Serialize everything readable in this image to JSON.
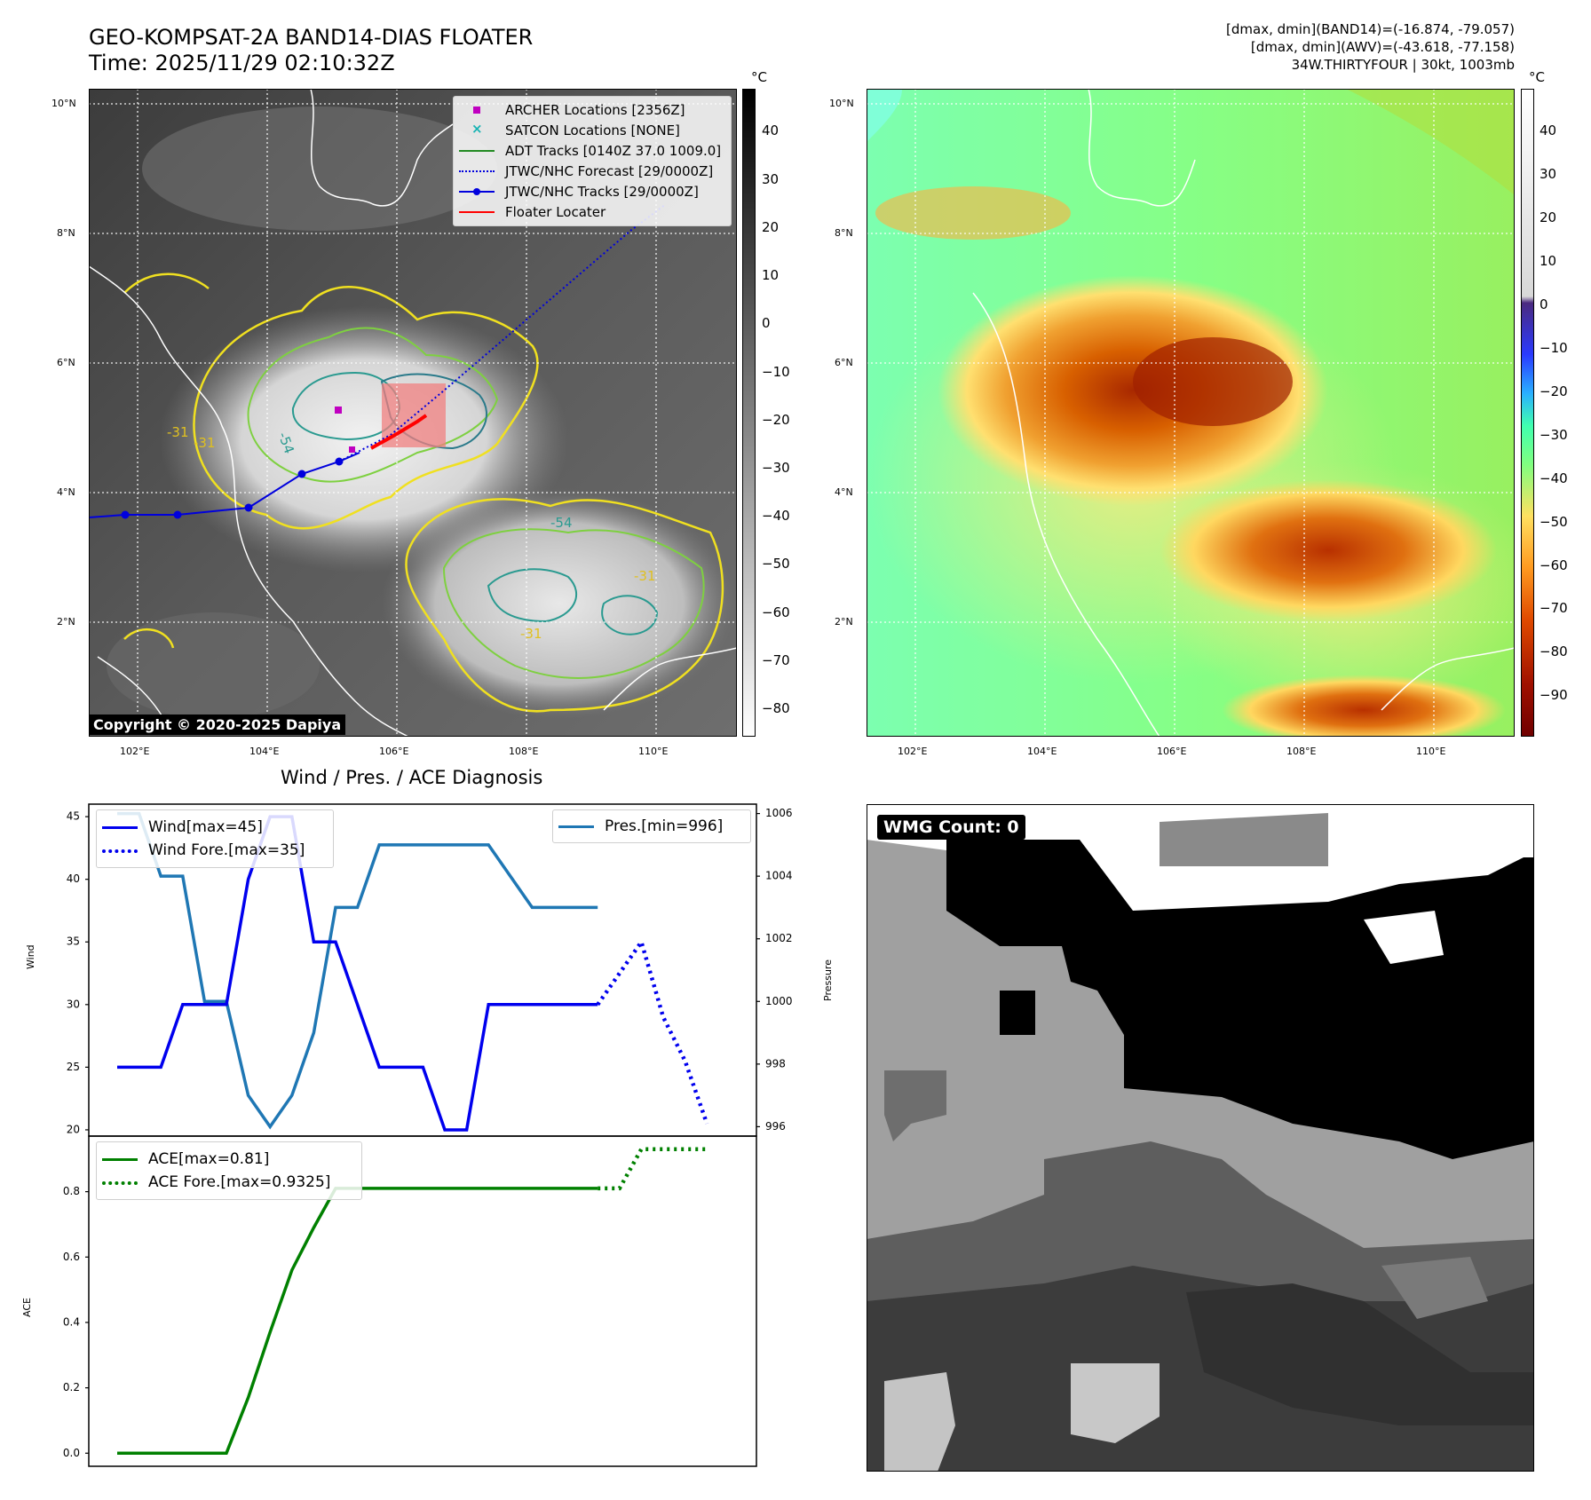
{
  "header": {
    "title_line1": "GEO-KOMPSAT-2A BAND14-DIAS FLOATER",
    "title_line2": "Time: 2025/11/29 02:10:32Z",
    "right_line1": "[dmax, dmin](BAND14)=(-16.874, -79.057)",
    "right_line2": "[dmax, dmin](AWV)=(-43.618, -77.158)",
    "right_line3": "34W.THIRTYFOUR | 30kt, 1003mb"
  },
  "map_axes": {
    "lon_ticks": [
      "102°E",
      "104°E",
      "106°E",
      "108°E",
      "110°E"
    ],
    "lat_ticks": [
      "10°N",
      "8°N",
      "6°N",
      "4°N",
      "2°N"
    ],
    "contour_labels": [
      "-31",
      "-31",
      "-54",
      "-31",
      "-31",
      "-54"
    ]
  },
  "ir_map": {
    "unit": "°C",
    "colorbar_ticks": [
      "40",
      "30",
      "20",
      "10",
      "0",
      "−10",
      "−20",
      "−30",
      "−40",
      "−50",
      "−60",
      "−70",
      "−80"
    ],
    "copyright": "Copyright © 2020-2025 Dapiya",
    "legend": [
      {
        "label": "ARCHER Locations [2356Z]",
        "color": "#c000c0",
        "style": "square"
      },
      {
        "label": "SATCON Locations [NONE]",
        "color": "#17b3b3",
        "style": "x"
      },
      {
        "label": "ADT Tracks [0140Z 37.0 1009.0]",
        "color": "#228b22",
        "style": "line"
      },
      {
        "label": "JTWC/NHC Forecast [29/0000Z]",
        "color": "#0000dd",
        "style": "dotted"
      },
      {
        "label": "JTWC/NHC Tracks [29/0000Z]",
        "color": "#0000dd",
        "style": "line-dot"
      },
      {
        "label": "Floater Locater",
        "color": "#ff0000",
        "style": "line"
      }
    ]
  },
  "wv_map": {
    "unit": "°C",
    "colorbar_ticks": [
      "40",
      "30",
      "20",
      "10",
      "0",
      "−10",
      "−20",
      "−30",
      "−40",
      "−50",
      "−60",
      "−70",
      "−80",
      "−90"
    ]
  },
  "wmg": {
    "label": "WMG Count: 0"
  },
  "diag": {
    "title": "Wind / Pres. / ACE Diagnosis",
    "wind_ylabel": "Wind",
    "pres_ylabel": "Pressure",
    "ace_ylabel": "ACE",
    "wind_ticks": [
      "45",
      "40",
      "35",
      "30",
      "25",
      "20"
    ],
    "pres_ticks": [
      "1006",
      "1004",
      "1002",
      "1000",
      "998",
      "996"
    ],
    "ace_ticks": [
      "0.8",
      "0.6",
      "0.4",
      "0.2",
      "0.0"
    ],
    "legend_wind": "Wind[max=45]",
    "legend_wind_fore": "Wind Fore.[max=35]",
    "legend_pres": "Pres.[min=996]",
    "legend_ace": "ACE[max=0.81]",
    "legend_ace_fore": "ACE Fore.[max=0.9325]"
  },
  "colors": {
    "wind": "#0000ee",
    "pressure": "#1f77b4",
    "ace": "#008000"
  },
  "chart_data": [
    {
      "type": "line",
      "name": "Wind / Pres.",
      "x": [
        0,
        1,
        2,
        3,
        4,
        5,
        6,
        7,
        8,
        9,
        10,
        11,
        12,
        13,
        14,
        15,
        16,
        17,
        18,
        19,
        20,
        21,
        22,
        23,
        24,
        25,
        26,
        27
      ],
      "series": [
        {
          "name": "Wind[max=45]",
          "axis": "left",
          "x": [
            0,
            1,
            2,
            3,
            4,
            5,
            6,
            7,
            8,
            9,
            10,
            11,
            12,
            13,
            14,
            15,
            16,
            17,
            18,
            19,
            20,
            21,
            22
          ],
          "values": [
            25,
            25,
            25,
            30,
            30,
            30,
            40,
            45,
            45,
            35,
            35,
            30,
            25,
            25,
            25,
            20,
            20,
            30,
            30,
            30,
            30,
            30,
            30
          ]
        },
        {
          "name": "Wind Fore.[max=35]",
          "axis": "left",
          "x": [
            22,
            23,
            24,
            25,
            26,
            27
          ],
          "values": [
            30,
            32.5,
            35,
            29,
            25.5,
            20.5
          ]
        },
        {
          "name": "Pres.[min=996]",
          "axis": "right",
          "x": [
            0,
            1,
            2,
            3,
            4,
            5,
            6,
            7,
            8,
            9,
            10,
            11,
            12,
            13,
            14,
            15,
            16,
            17,
            18,
            19,
            20,
            21,
            22
          ],
          "values": [
            1006,
            1006,
            1004,
            1004,
            1000,
            1000,
            997,
            996,
            997,
            999,
            1003,
            1003,
            1005,
            1005,
            1005,
            1005,
            1005,
            1005,
            1004,
            1003,
            1003,
            1003,
            1003
          ]
        }
      ],
      "ylabel": "Wind",
      "ylim": [
        19.5,
        46
      ],
      "y2label": "Pressure",
      "y2lim": [
        995.7,
        1006.3
      ]
    },
    {
      "type": "line",
      "name": "ACE",
      "series": [
        {
          "name": "ACE[max=0.81]",
          "x": [
            0,
            1,
            2,
            3,
            4,
            5,
            6,
            7,
            8,
            9,
            10,
            11,
            12,
            13,
            14,
            15,
            16,
            17,
            18,
            19,
            20,
            21,
            22
          ],
          "values": [
            0,
            0,
            0,
            0,
            0,
            0,
            0.17,
            0.37,
            0.56,
            0.69,
            0.81,
            0.81,
            0.81,
            0.81,
            0.81,
            0.81,
            0.81,
            0.81,
            0.81,
            0.81,
            0.81,
            0.81,
            0.81
          ]
        },
        {
          "name": "ACE Fore.[max=0.9325]",
          "x": [
            22,
            23,
            24,
            25,
            26,
            27
          ],
          "values": [
            0.81,
            0.81,
            0.93,
            0.93,
            0.93,
            0.93
          ]
        }
      ],
      "ylabel": "ACE",
      "ylim": [
        -0.04,
        0.97
      ]
    }
  ]
}
